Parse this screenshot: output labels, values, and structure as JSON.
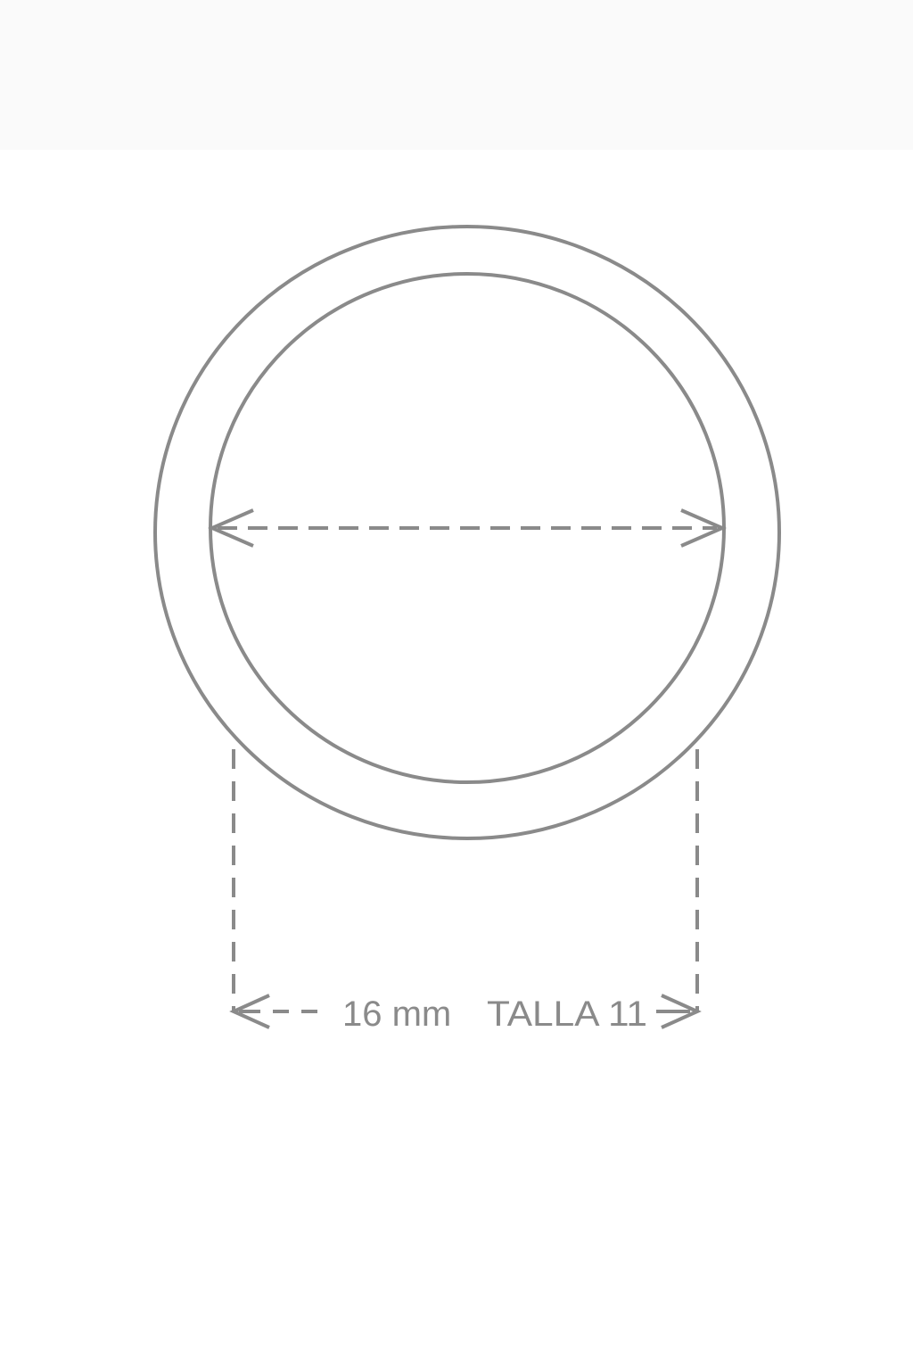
{
  "measurement": {
    "value": "16 mm",
    "size_label": "TALLA 11"
  },
  "colors": {
    "stroke": "#8a8a8a",
    "background": "#ffffff",
    "top_band": "#fafafa"
  }
}
